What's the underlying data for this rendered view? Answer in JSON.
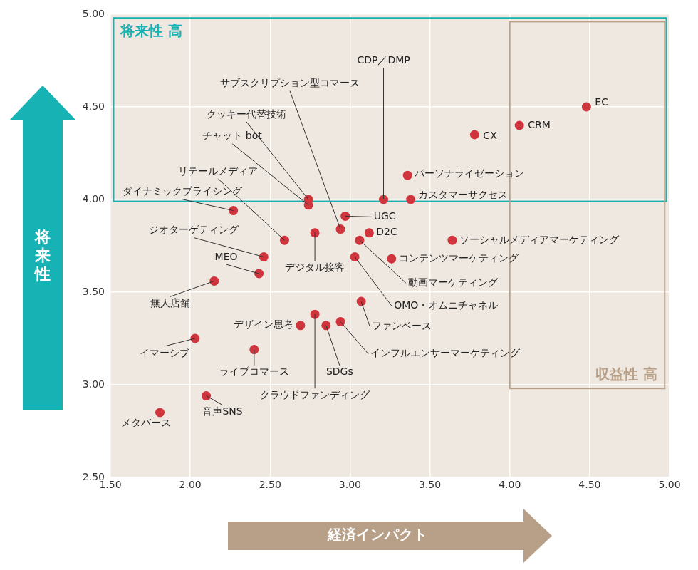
{
  "chart_data": {
    "type": "scatter",
    "x_label": "経済インパクト",
    "y_label": "将来性",
    "xlim": [
      1.5,
      5
    ],
    "ylim": [
      2.5,
      5
    ],
    "xticks": [
      {
        "value": 1.5,
        "label": "1.50"
      },
      {
        "value": 2,
        "label": "2.00"
      },
      {
        "value": 2.5,
        "label": "2.50"
      },
      {
        "value": 3,
        "label": "3.00"
      },
      {
        "value": 3.5,
        "label": "3.50"
      },
      {
        "value": 4,
        "label": "4.00"
      },
      {
        "value": 4.5,
        "label": "4.50"
      },
      {
        "value": 5,
        "label": "5.00"
      }
    ],
    "yticks": [
      {
        "value": 2.5,
        "label": "2.50"
      },
      {
        "value": 3,
        "label": "3.00"
      },
      {
        "value": 3.5,
        "label": "3.50"
      },
      {
        "value": 4,
        "label": "4.00"
      },
      {
        "value": 4.5,
        "label": "4.50"
      },
      {
        "value": 5,
        "label": "5.00"
      }
    ],
    "grid": true,
    "color": "#d0343c",
    "points": [
      {
        "label": "EC",
        "x": 4.48,
        "y": 4.5
      },
      {
        "label": "CRM",
        "x": 4.06,
        "y": 4.4
      },
      {
        "label": "CX",
        "x": 3.78,
        "y": 4.35
      },
      {
        "label": "パーソナライゼーション",
        "x": 3.36,
        "y": 4.13
      },
      {
        "label": "カスタマーサクセス",
        "x": 3.38,
        "y": 4.0
      },
      {
        "label": "CDP／DMP",
        "x": 3.21,
        "y": 4.0
      },
      {
        "label": "クッキー代替技術",
        "x": 2.74,
        "y": 4.0
      },
      {
        "label": "チャット bot",
        "x": 2.74,
        "y": 3.97
      },
      {
        "label": "サブスクリプション型コマース",
        "x": 2.94,
        "y": 3.84
      },
      {
        "label": "UGC",
        "x": 2.97,
        "y": 3.91
      },
      {
        "label": "D2C",
        "x": 3.12,
        "y": 3.82
      },
      {
        "label": "デジタル接客",
        "x": 2.78,
        "y": 3.82
      },
      {
        "label": "リテールメディア",
        "x": 2.59,
        "y": 3.78
      },
      {
        "label": "ダイナミックプライシング",
        "x": 2.27,
        "y": 3.94
      },
      {
        "label": "ジオターゲティング",
        "x": 2.46,
        "y": 3.69
      },
      {
        "label": "MEO",
        "x": 2.43,
        "y": 3.6
      },
      {
        "label": "無人店舗",
        "x": 2.15,
        "y": 3.56
      },
      {
        "label": "ソーシャルメディアマーケティング",
        "x": 3.64,
        "y": 3.78
      },
      {
        "label": "コンテンツマーケティング",
        "x": 3.26,
        "y": 3.68
      },
      {
        "label": "動画マーケティング",
        "x": 3.06,
        "y": 3.78
      },
      {
        "label": "OMO・オムニチャネル",
        "x": 3.03,
        "y": 3.69
      },
      {
        "label": "ファンベース",
        "x": 3.07,
        "y": 3.45
      },
      {
        "label": "デザイン思考",
        "x": 2.69,
        "y": 3.32
      },
      {
        "label": "クラウドファンディング",
        "x": 2.78,
        "y": 3.38
      },
      {
        "label": "SDGs",
        "x": 2.85,
        "y": 3.32
      },
      {
        "label": "インフルエンサーマーケティング",
        "x": 2.94,
        "y": 3.34
      },
      {
        "label": "イマーシブ",
        "x": 2.03,
        "y": 3.25
      },
      {
        "label": "ライブコマース",
        "x": 2.4,
        "y": 3.19
      },
      {
        "label": "音声SNS",
        "x": 2.1,
        "y": 2.94
      },
      {
        "label": "メタバース",
        "x": 1.81,
        "y": 2.85
      }
    ],
    "annotations": [
      {
        "text": "将来性 高",
        "x_range": [
          1.52,
          4.98
        ],
        "y_range": [
          3.99,
          4.98
        ],
        "color": "#17b2b4"
      },
      {
        "text": "収益性 高",
        "x_range": [
          4.0,
          4.97
        ],
        "y_range": [
          2.98,
          4.96
        ],
        "color": "#b8a088"
      }
    ]
  }
}
